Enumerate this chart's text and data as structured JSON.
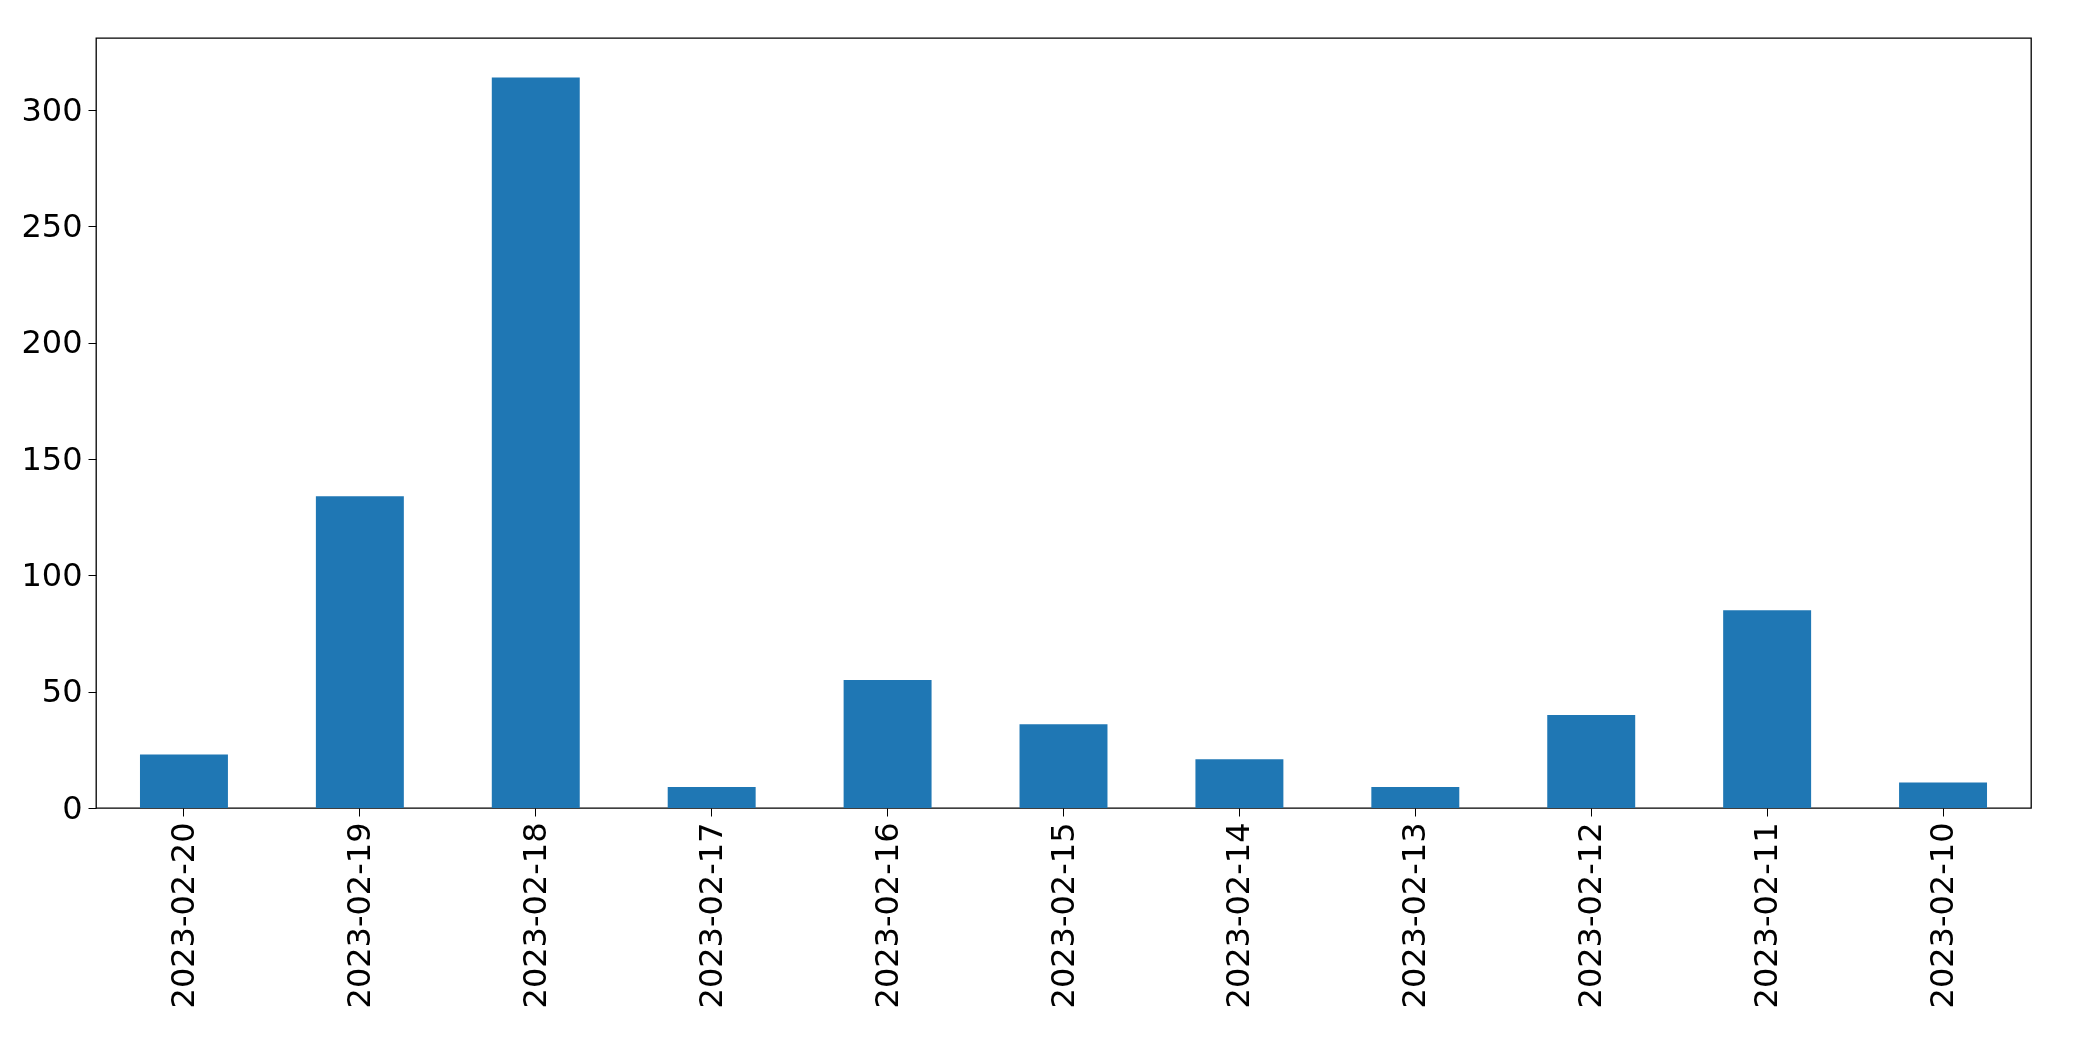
{
  "chart_data": {
    "type": "bar",
    "categories": [
      "2023-02-20",
      "2023-02-19",
      "2023-02-18",
      "2023-02-17",
      "2023-02-16",
      "2023-02-15",
      "2023-02-14",
      "2023-02-13",
      "2023-02-12",
      "2023-02-11",
      "2023-02-10"
    ],
    "values": [
      23,
      134,
      314,
      9,
      55,
      36,
      21,
      9,
      40,
      85,
      11
    ],
    "color": "#1f77b4",
    "ylim": [
      0,
      331
    ],
    "yticks": [
      0,
      50,
      100,
      150,
      200,
      250,
      300
    ],
    "grid": false
  }
}
